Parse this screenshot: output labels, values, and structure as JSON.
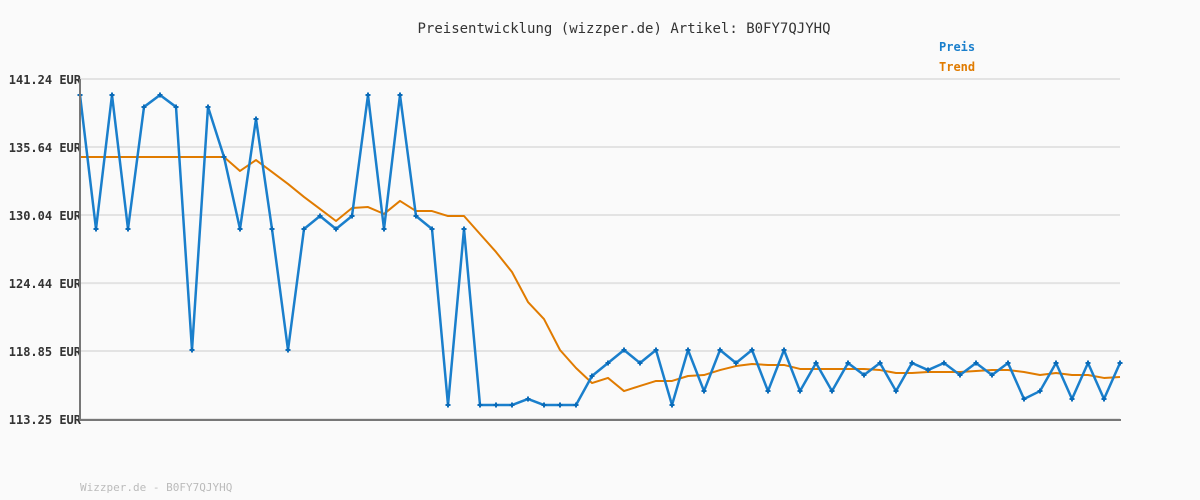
{
  "chart_data": {
    "type": "line",
    "title": "Preisentwicklung (wizzper.de) Artikel: B0FY7QJYHQ",
    "footer": "Wizzper.de - B0FY7QJYHQ",
    "ylim": [
      113.25,
      141.24
    ],
    "yticks": [
      "141.24 EUR",
      "135.64 EUR",
      "130.04 EUR",
      "124.44 EUR",
      "118.85 EUR",
      "113.25 EUR"
    ],
    "ytick_values": [
      141.24,
      135.64,
      130.04,
      124.44,
      118.85,
      113.25
    ],
    "grid": true,
    "legend_placement": "top-right",
    "series": [
      {
        "name": "Preis",
        "color": "#1a7fcc",
        "markers": true,
        "values": [
          139.92,
          128.89,
          139.92,
          128.89,
          138.94,
          139.92,
          138.94,
          118.93,
          138.94,
          134.82,
          128.89,
          137.95,
          128.89,
          118.93,
          128.89,
          129.96,
          128.89,
          129.96,
          139.92,
          128.89,
          139.92,
          129.96,
          128.89,
          114.4,
          128.89,
          114.4,
          114.4,
          114.4,
          114.9,
          114.4,
          114.4,
          114.4,
          116.79,
          117.86,
          118.93,
          117.86,
          118.93,
          114.4,
          118.93,
          115.55,
          118.93,
          117.86,
          118.93,
          115.55,
          118.93,
          115.55,
          117.86,
          115.55,
          117.86,
          116.87,
          117.86,
          115.55,
          117.86,
          117.28,
          117.86,
          116.87,
          117.86,
          116.87,
          117.86,
          114.9,
          115.55,
          117.86,
          114.9,
          117.86,
          114.9,
          117.86
        ]
      },
      {
        "name": "Trend",
        "color": "#e07b00",
        "markers": false,
        "values": [
          134.82,
          134.82,
          134.82,
          134.82,
          134.82,
          134.82,
          134.82,
          134.82,
          134.82,
          134.82,
          133.67,
          134.57,
          133.59,
          132.6,
          131.53,
          130.54,
          129.55,
          130.62,
          130.7,
          130.13,
          131.2,
          130.37,
          130.37,
          129.96,
          129.96,
          128.48,
          127.0,
          125.35,
          122.88,
          121.48,
          118.93,
          117.45,
          116.21,
          116.63,
          115.55,
          115.97,
          116.38,
          116.38,
          116.79,
          116.87,
          117.28,
          117.61,
          117.78,
          117.7,
          117.7,
          117.37,
          117.37,
          117.37,
          117.37,
          117.37,
          117.28,
          117.04,
          117.04,
          117.12,
          117.12,
          117.12,
          117.2,
          117.28,
          117.28,
          117.12,
          116.87,
          117.04,
          116.87,
          116.87,
          116.63,
          116.71
        ]
      }
    ]
  }
}
